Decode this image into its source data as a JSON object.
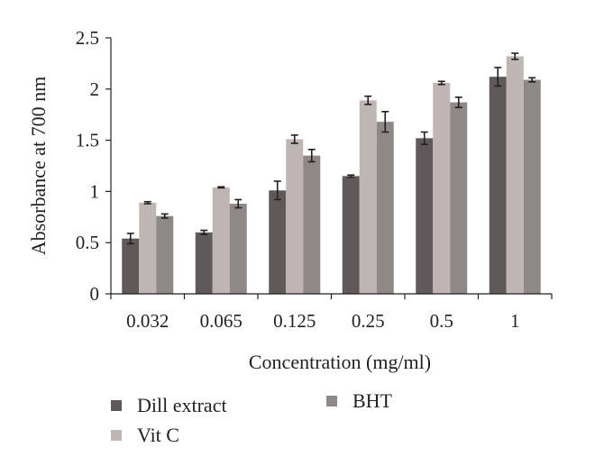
{
  "chart_data": {
    "type": "bar",
    "title": "",
    "xlabel": "Concentration (mg/ml)",
    "ylabel": "Absorbance at 700 nm",
    "ylim": [
      0,
      2.5
    ],
    "yticks": [
      "0",
      "0.5",
      "1",
      "1.5",
      "2",
      "2.5"
    ],
    "categories": [
      "0.032",
      "0.065",
      "0.125",
      "0.25",
      "0.5",
      "1"
    ],
    "series": [
      {
        "name": "Dill extract",
        "color": "#5f5a59",
        "values": [
          0.54,
          0.6,
          1.01,
          1.15,
          1.52,
          2.12
        ],
        "errors": [
          0.05,
          0.02,
          0.09,
          0.01,
          0.06,
          0.09
        ]
      },
      {
        "name": "Vit C",
        "color": "#bfb6b4",
        "values": [
          0.89,
          1.04,
          1.51,
          1.89,
          2.06,
          2.32
        ],
        "errors": [
          0.01,
          0.005,
          0.04,
          0.04,
          0.015,
          0.03
        ]
      },
      {
        "name": "BHT",
        "color": "#8e8886",
        "values": [
          0.76,
          0.88,
          1.35,
          1.68,
          1.87,
          2.09
        ],
        "errors": [
          0.02,
          0.04,
          0.06,
          0.1,
          0.05,
          0.02
        ]
      }
    ],
    "grid": false,
    "legend_position": "bottom"
  }
}
